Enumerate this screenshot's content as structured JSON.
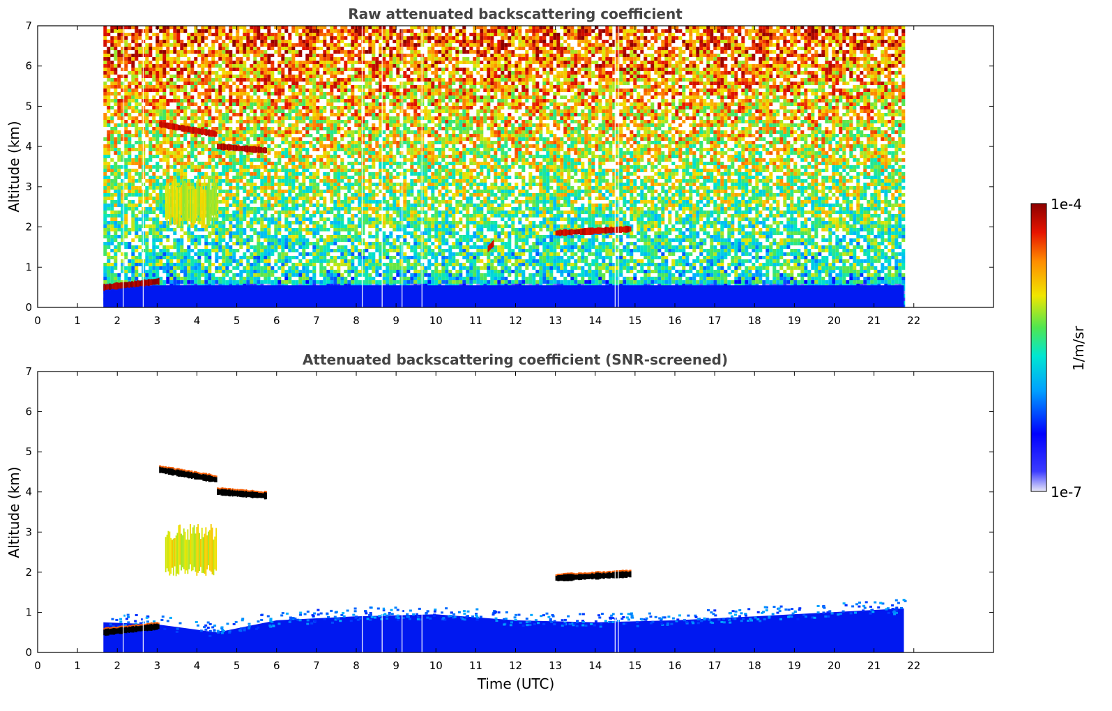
{
  "colors": {
    "title": "#444444",
    "ground_layer": "#0018f0",
    "colormap": [
      "#e8e8f8",
      "#0000ff",
      "#00b4ff",
      "#00e6c8",
      "#50e650",
      "#f0e600",
      "#ff8c00",
      "#e61400",
      "#8c0000"
    ]
  },
  "chart_data": [
    {
      "type": "heatmap",
      "title": "Raw attenuated backscattering coefficient",
      "xlabel": "",
      "ylabel": "Altitude (km)",
      "xlim": [
        0,
        24
      ],
      "ylim": [
        0,
        7
      ],
      "x_ticks": [
        "0",
        "1",
        "2",
        "3",
        "4",
        "5",
        "6",
        "7",
        "8",
        "9",
        "10",
        "11",
        "12",
        "13",
        "14",
        "15",
        "16",
        "17",
        "18",
        "19",
        "20",
        "21",
        "22"
      ],
      "y_ticks": [
        "0",
        "1",
        "2",
        "3",
        "4",
        "5",
        "6",
        "7"
      ],
      "data_time_range": [
        1.65,
        21.75
      ],
      "gap_times": [
        2.15,
        2.65,
        8.15,
        8.65,
        9.15,
        9.65,
        14.5,
        14.58
      ],
      "features": [
        {
          "name": "low cloud",
          "t": [
            1.65,
            3.05
          ],
          "alt": [
            0.5,
            0.65
          ],
          "level": 0.97
        },
        {
          "name": "cloud layer",
          "t": [
            3.05,
            4.5
          ],
          "alt": [
            4.55,
            4.3
          ],
          "level": 0.92
        },
        {
          "name": "cloud layer",
          "t": [
            4.5,
            5.75
          ],
          "alt": [
            4.0,
            3.9
          ],
          "level": 0.95
        },
        {
          "name": "precipitation",
          "t": [
            3.2,
            4.5
          ],
          "alt": [
            2.0,
            3.3
          ],
          "level": 0.6
        },
        {
          "name": "isolated cloud",
          "t": [
            13.0,
            14.9
          ],
          "alt": [
            1.85,
            1.95
          ],
          "level": 0.92
        },
        {
          "name": "isolated cloud",
          "t": [
            11.3,
            11.45
          ],
          "alt": [
            1.45,
            1.6
          ],
          "level": 0.9
        }
      ]
    },
    {
      "type": "heatmap",
      "title": "Attenuated backscattering coefficient (SNR-screened)",
      "xlabel": "Time (UTC)",
      "ylabel": "Altitude (km)",
      "xlim": [
        0,
        24
      ],
      "ylim": [
        0,
        7
      ],
      "x_ticks": [
        "0",
        "1",
        "2",
        "3",
        "4",
        "5",
        "6",
        "7",
        "8",
        "9",
        "10",
        "11",
        "12",
        "13",
        "14",
        "15",
        "16",
        "17",
        "18",
        "19",
        "20",
        "21",
        "22"
      ],
      "y_ticks": [
        "0",
        "1",
        "2",
        "3",
        "4",
        "5",
        "6",
        "7"
      ],
      "data_time_range": [
        1.65,
        21.75
      ],
      "gap_times": [
        2.15,
        2.65,
        8.15,
        8.65,
        9.15,
        9.65,
        14.5,
        14.58
      ],
      "boundary_layer_top": [
        [
          1.65,
          0.75
        ],
        [
          3.0,
          0.7
        ],
        [
          4.5,
          0.5
        ],
        [
          6.0,
          0.8
        ],
        [
          8.0,
          0.9
        ],
        [
          10.0,
          0.95
        ],
        [
          12.0,
          0.8
        ],
        [
          14.0,
          0.75
        ],
        [
          16.0,
          0.8
        ],
        [
          18.0,
          0.9
        ],
        [
          21.75,
          1.1
        ]
      ],
      "features": [
        {
          "name": "low cloud",
          "t": [
            1.65,
            3.05
          ],
          "alt": [
            0.5,
            0.65
          ],
          "level": 1.0
        },
        {
          "name": "cloud layer",
          "t": [
            3.05,
            4.5
          ],
          "alt": [
            4.55,
            4.3
          ],
          "level": 1.0
        },
        {
          "name": "cloud layer",
          "t": [
            4.5,
            5.75
          ],
          "alt": [
            4.0,
            3.9
          ],
          "level": 1.0
        },
        {
          "name": "precipitation",
          "t": [
            3.2,
            4.5
          ],
          "alt": [
            1.9,
            3.2
          ],
          "level": 0.62
        },
        {
          "name": "isolated cloud",
          "t": [
            13.0,
            14.9
          ],
          "alt": [
            1.85,
            1.95
          ],
          "level": 1.0
        }
      ]
    }
  ],
  "colorbar": {
    "max_label": "1e-4",
    "min_label": "1e-7",
    "unit_label": "1/m/sr"
  }
}
